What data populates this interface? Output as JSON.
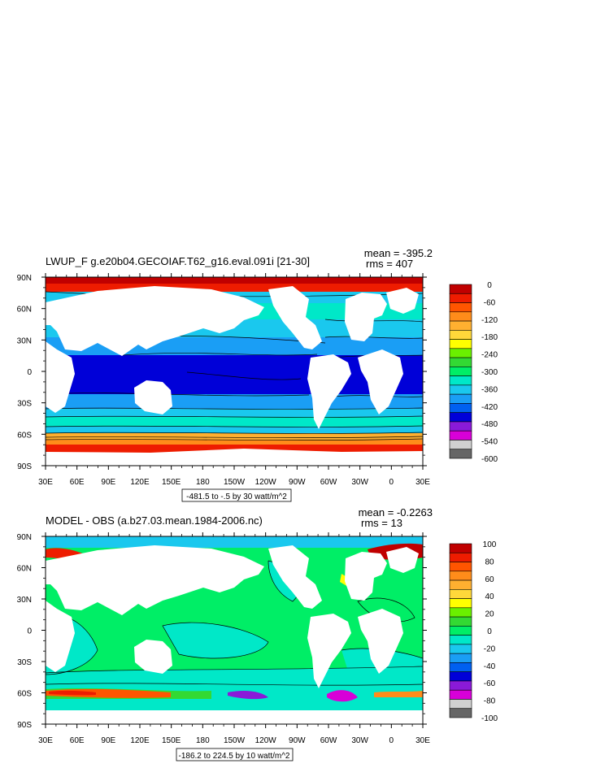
{
  "panels": [
    {
      "title": "LWUP_F g.e20b04.GECOIAF.T62_g16.eval.091i [21-30]",
      "mean": "mean = -395.2",
      "rms": "rms = 407",
      "range_label": "-481.5 to -.5 by 30 watt/m^2",
      "lat_labels": [
        "90N",
        "60N",
        "30N",
        "0",
        "30S",
        "60S",
        "90S"
      ],
      "lon_labels": [
        "30E",
        "60E",
        "90E",
        "120E",
        "150E",
        "180",
        "150W",
        "120W",
        "90W",
        "60W",
        "30W",
        "0",
        "30E"
      ],
      "colorbar_labels": [
        "0",
        "-60",
        "-120",
        "-180",
        "-240",
        "-300",
        "-360",
        "-420",
        "-480",
        "-540",
        "-600"
      ],
      "colorbar_colors": [
        "#c00000",
        "#ee1c00",
        "#ff5500",
        "#ff8c1a",
        "#ffb030",
        "#ffd83a",
        "#ffff00",
        "#6af000",
        "#33d933",
        "#00ee66",
        "#00e8c8",
        "#1ac8ee",
        "#1a9ef5",
        "#0060f0",
        "#0000d8",
        "#8a1ad8",
        "#d800d8",
        "#d0d0d0",
        "#666666"
      ]
    },
    {
      "title": "MODEL - OBS (a.b27.03.mean.1984-2006.nc)",
      "mean": "mean = -0.2263",
      "rms": "rms = 13",
      "range_label": "-186.2 to 224.5 by 10 watt/m^2",
      "lat_labels": [
        "90N",
        "60N",
        "30N",
        "0",
        "30S",
        "60S",
        "90S"
      ],
      "lon_labels": [
        "30E",
        "60E",
        "90E",
        "120E",
        "150E",
        "180",
        "150W",
        "120W",
        "90W",
        "60W",
        "30W",
        "0",
        "30E"
      ],
      "colorbar_labels": [
        "100",
        "80",
        "60",
        "40",
        "20",
        "0",
        "-20",
        "-40",
        "-60",
        "-80",
        "-100"
      ],
      "colorbar_colors": [
        "#c00000",
        "#ee1c00",
        "#ff5500",
        "#ff8c1a",
        "#ffb030",
        "#ffd83a",
        "#ffff00",
        "#6af000",
        "#33d933",
        "#00ee66",
        "#00e8c8",
        "#1ac8ee",
        "#1a9ef5",
        "#0060f0",
        "#0000d8",
        "#8a1ad8",
        "#d800d8",
        "#d0d0d0",
        "#666666"
      ]
    }
  ]
}
